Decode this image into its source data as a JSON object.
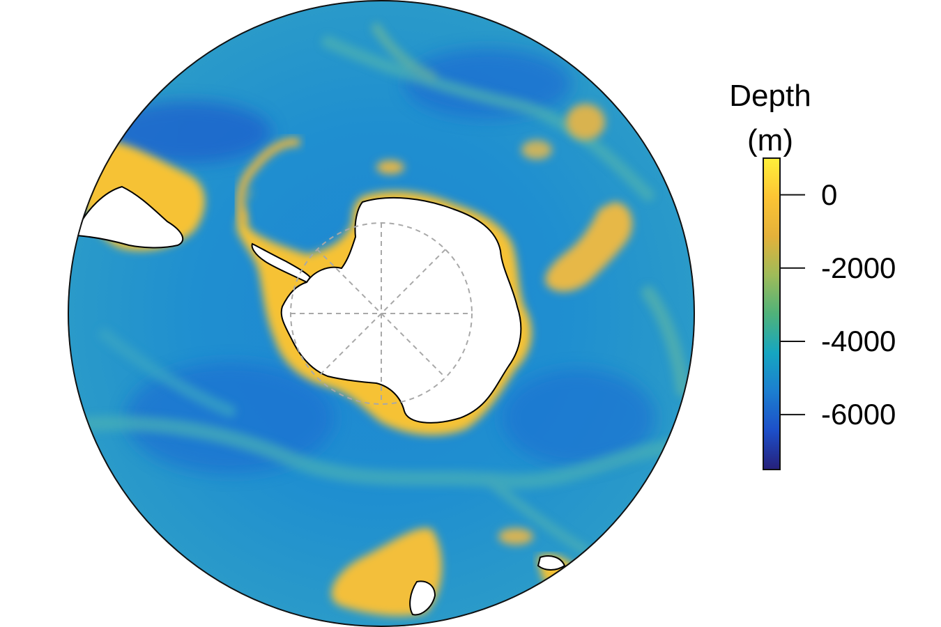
{
  "legend": {
    "title_line1": "Depth",
    "title_line2": "(m)",
    "min": -7500,
    "max": 1000,
    "ticks": [
      {
        "value": 0,
        "label": "0"
      },
      {
        "value": -2000,
        "label": "-2000"
      },
      {
        "value": -4000,
        "label": "-4000"
      },
      {
        "value": -6000,
        "label": "-6000"
      }
    ],
    "colors": [
      "#26207a",
      "#1d4fc9",
      "#1c7ed0",
      "#16a6c1",
      "#4fb27a",
      "#9fbb59",
      "#e4b13a",
      "#fcc434",
      "#fff03a"
    ]
  },
  "map": {
    "projection": "south-polar-stereographic",
    "graticule": "dashed",
    "colors": {
      "deep": "#1d6fd0",
      "ocean": "#1e8ed0",
      "mid": "#2fa3c8",
      "ridge": "#8ab87a",
      "shelf": "#f9c233",
      "land": "#ffffff",
      "coast": "#000000",
      "graticule": "#a8a8a8"
    }
  }
}
